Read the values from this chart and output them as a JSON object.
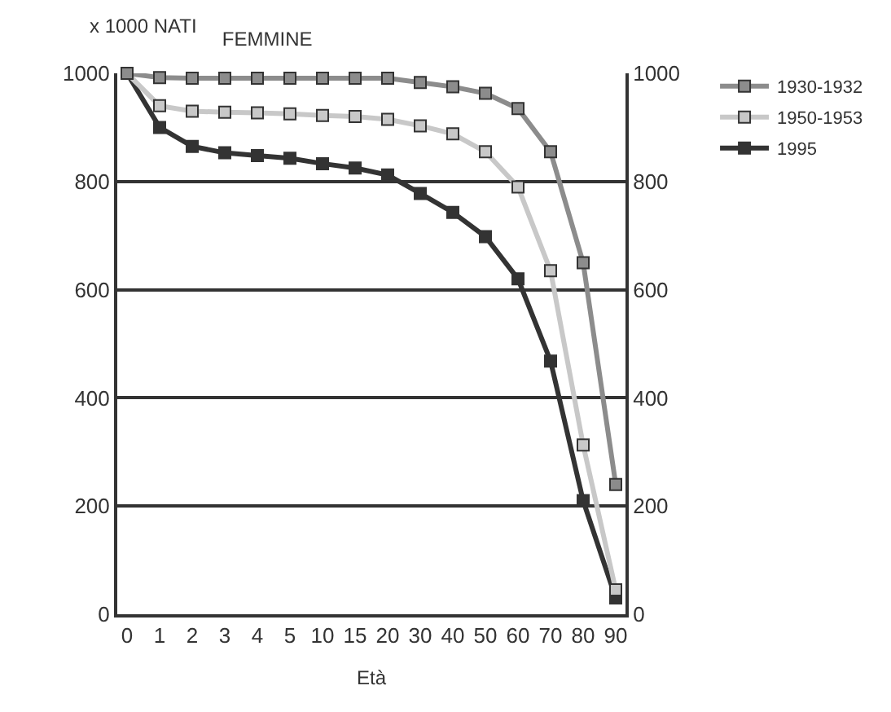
{
  "chart_data": {
    "type": "line",
    "title": "FEMMINE",
    "ylabel": "x 1000 NATI",
    "xlabel": "Età",
    "categories": [
      "0",
      "1",
      "2",
      "3",
      "4",
      "5",
      "10",
      "15",
      "20",
      "30",
      "40",
      "50",
      "60",
      "70",
      "80",
      "90"
    ],
    "series": [
      {
        "name": "1930-1932",
        "color": "#8c8c8c",
        "values": [
          1000,
          992,
          991,
          991,
          991,
          991,
          991,
          991,
          991,
          983,
          975,
          963,
          935,
          855,
          650,
          240
        ]
      },
      {
        "name": "1950-1953",
        "color": "#c8c8c8",
        "values": [
          1000,
          940,
          930,
          928,
          927,
          925,
          922,
          920,
          915,
          903,
          888,
          855,
          790,
          635,
          313,
          45
        ]
      },
      {
        "name": "1995",
        "color": "#333333",
        "values": [
          1000,
          900,
          865,
          853,
          848,
          843,
          833,
          825,
          812,
          778,
          743,
          698,
          620,
          468,
          210,
          30
        ]
      }
    ],
    "ylim": [
      0,
      1000
    ],
    "yticks": [
      0,
      200,
      400,
      600,
      800,
      1000
    ],
    "y2lim": [
      0,
      1000
    ],
    "y2ticks": [
      0,
      200,
      400,
      600,
      800,
      1000
    ],
    "grid": "y",
    "legend": "top right",
    "marker": "square",
    "line_style": "solid"
  }
}
